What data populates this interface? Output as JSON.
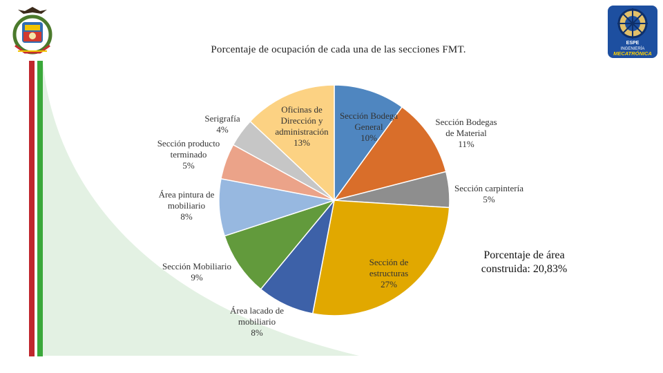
{
  "slide": {
    "title": "Porcentaje de ocupación de cada una de las secciones FMT.",
    "note_lines": [
      "Porcentaje de área",
      "construida: 20,83%"
    ],
    "logos": {
      "left": "institution-crest-logo",
      "right": "espe-ingenieria-mecatronica-logo",
      "right_text": [
        "ESPE",
        "INGENIERÍA",
        "MECATRÓNICA"
      ]
    },
    "colors": {
      "deco_red": "#c0272d",
      "deco_green": "#3aa83a",
      "deco_fill": "#e3f1e3"
    }
  },
  "chart_data": {
    "type": "pie",
    "title": "Porcentaje de ocupación de cada una de las secciones FMT.",
    "start": "12 o'clock",
    "direction": "clockwise",
    "slices": [
      {
        "label": [
          "Sección Bodega",
          "General",
          "10%"
        ],
        "value": 10,
        "color": "#4f86c0"
      },
      {
        "label": [
          "Sección Bodegas",
          "de Material",
          "11%"
        ],
        "value": 11,
        "color": "#d96e2a"
      },
      {
        "label": [
          "Sección carpintería",
          "5%"
        ],
        "value": 5,
        "color": "#8e8e8e"
      },
      {
        "label": [
          "Sección de",
          "estructuras",
          "27%"
        ],
        "value": 27,
        "color": "#e1a800"
      },
      {
        "label": [
          "Área lacado de",
          "mobiliario",
          "8%"
        ],
        "value": 8,
        "color": "#3d61a8"
      },
      {
        "label": [
          "Sección Mobiliario",
          "9%"
        ],
        "value": 9,
        "color": "#629a3c"
      },
      {
        "label": [
          "Área pintura de",
          "mobiliario",
          "8%"
        ],
        "value": 8,
        "color": "#97b8e0"
      },
      {
        "label": [
          "Sección producto",
          "terminado",
          "5%"
        ],
        "value": 5,
        "color": "#eba389"
      },
      {
        "label": [
          "Serigrafía",
          "4%"
        ],
        "value": 4,
        "color": "#c6c6c6"
      },
      {
        "label": [
          "Oficinas de",
          "Dirección y",
          "administración",
          "13%"
        ],
        "value": 13,
        "color": "#fcd283"
      }
    ]
  }
}
